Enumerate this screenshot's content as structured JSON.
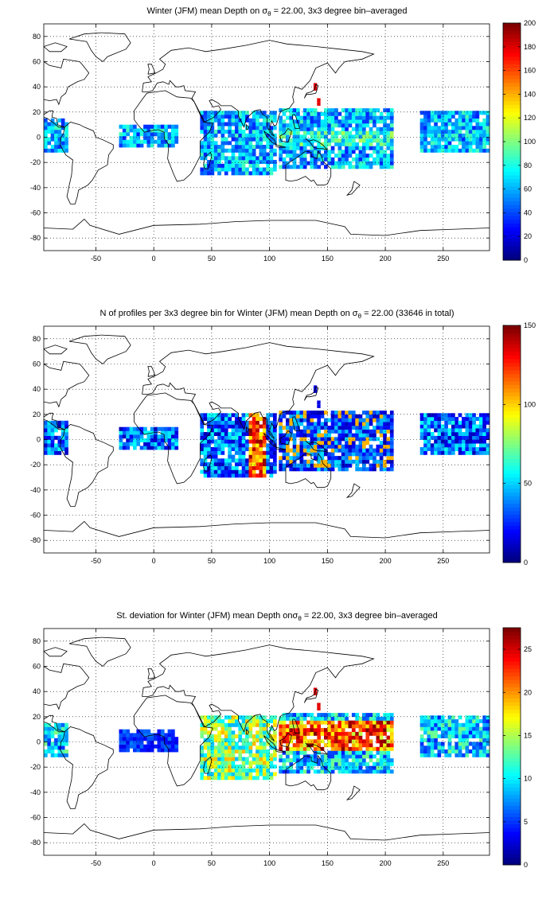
{
  "panels": [
    {
      "title_pre": "Winter (JFM) mean Depth on σ",
      "title_sub": "θ",
      "title_post": " = 22.00, 3x3 degree bin–averaged",
      "colorbar_ticks": [
        "0",
        "20",
        "40",
        "60",
        "80",
        "100",
        "120",
        "140",
        "160",
        "180",
        "200"
      ],
      "colorbar_range": [
        0,
        200
      ]
    },
    {
      "title_pre": "N of profiles per 3x3 degree bin for Winter (JFM) mean Depth on σ",
      "title_sub": "θ",
      "title_post": " = 22.00 (33646 in total)",
      "colorbar_ticks": [
        "0",
        "50",
        "100",
        "150"
      ],
      "colorbar_range": [
        0,
        150
      ]
    },
    {
      "title_pre": "St. deviation for Winter (JFM) mean Depth onσ",
      "title_sub": "θ",
      "title_post": " = 22.00, 3x3 degree bin–averaged",
      "colorbar_ticks": [
        "0",
        "5",
        "10",
        "15",
        "20",
        "25"
      ],
      "colorbar_range": [
        0,
        27.5
      ]
    }
  ],
  "map": {
    "x_ticks": [
      "-50",
      "0",
      "50",
      "100",
      "150",
      "200",
      "250"
    ],
    "y_ticks": [
      "80",
      "60",
      "40",
      "20",
      "0",
      "-20",
      "-40",
      "-60",
      "-80"
    ],
    "x_range": [
      -95,
      290
    ],
    "y_range": [
      -90,
      90
    ],
    "grid": "dotted"
  },
  "colormap": "jet"
}
